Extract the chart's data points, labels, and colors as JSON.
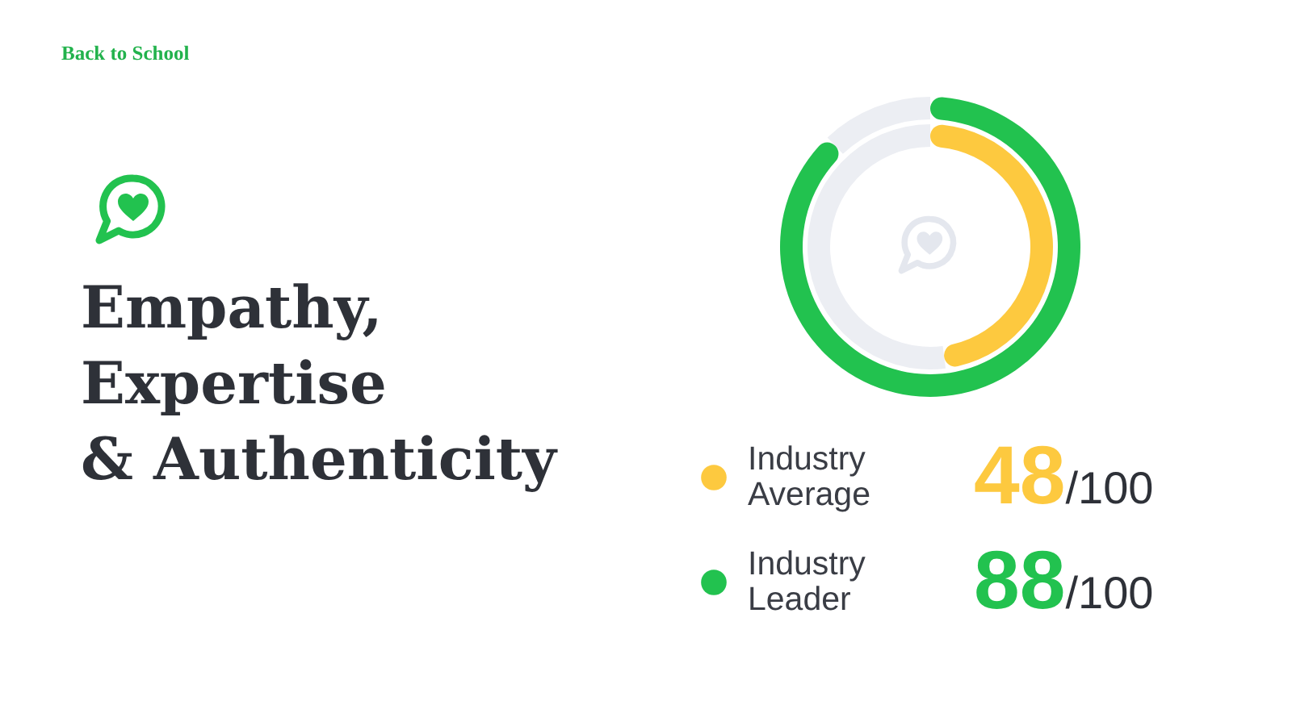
{
  "chart_data": {
    "type": "donut",
    "title": "Empathy, Expertise & Authenticity",
    "annotations": [
      "Back to School"
    ],
    "categories": [
      null,
      null
    ],
    "colors": [
      null,
      "#eceef3"
    ],
    "series": [
      {
        "name": "Industry Average",
        "color": "#fdc93f",
        "values": [
          48,
          52
        ],
        "value_labels": [
          "48/100",
          null
        ]
      },
      {
        "name": "Industry Leader",
        "color": "#22c24f",
        "values": [
          88,
          12
        ],
        "value_labels": [
          "88/100",
          null
        ]
      }
    ],
    "legend": "bottom"
  }
}
